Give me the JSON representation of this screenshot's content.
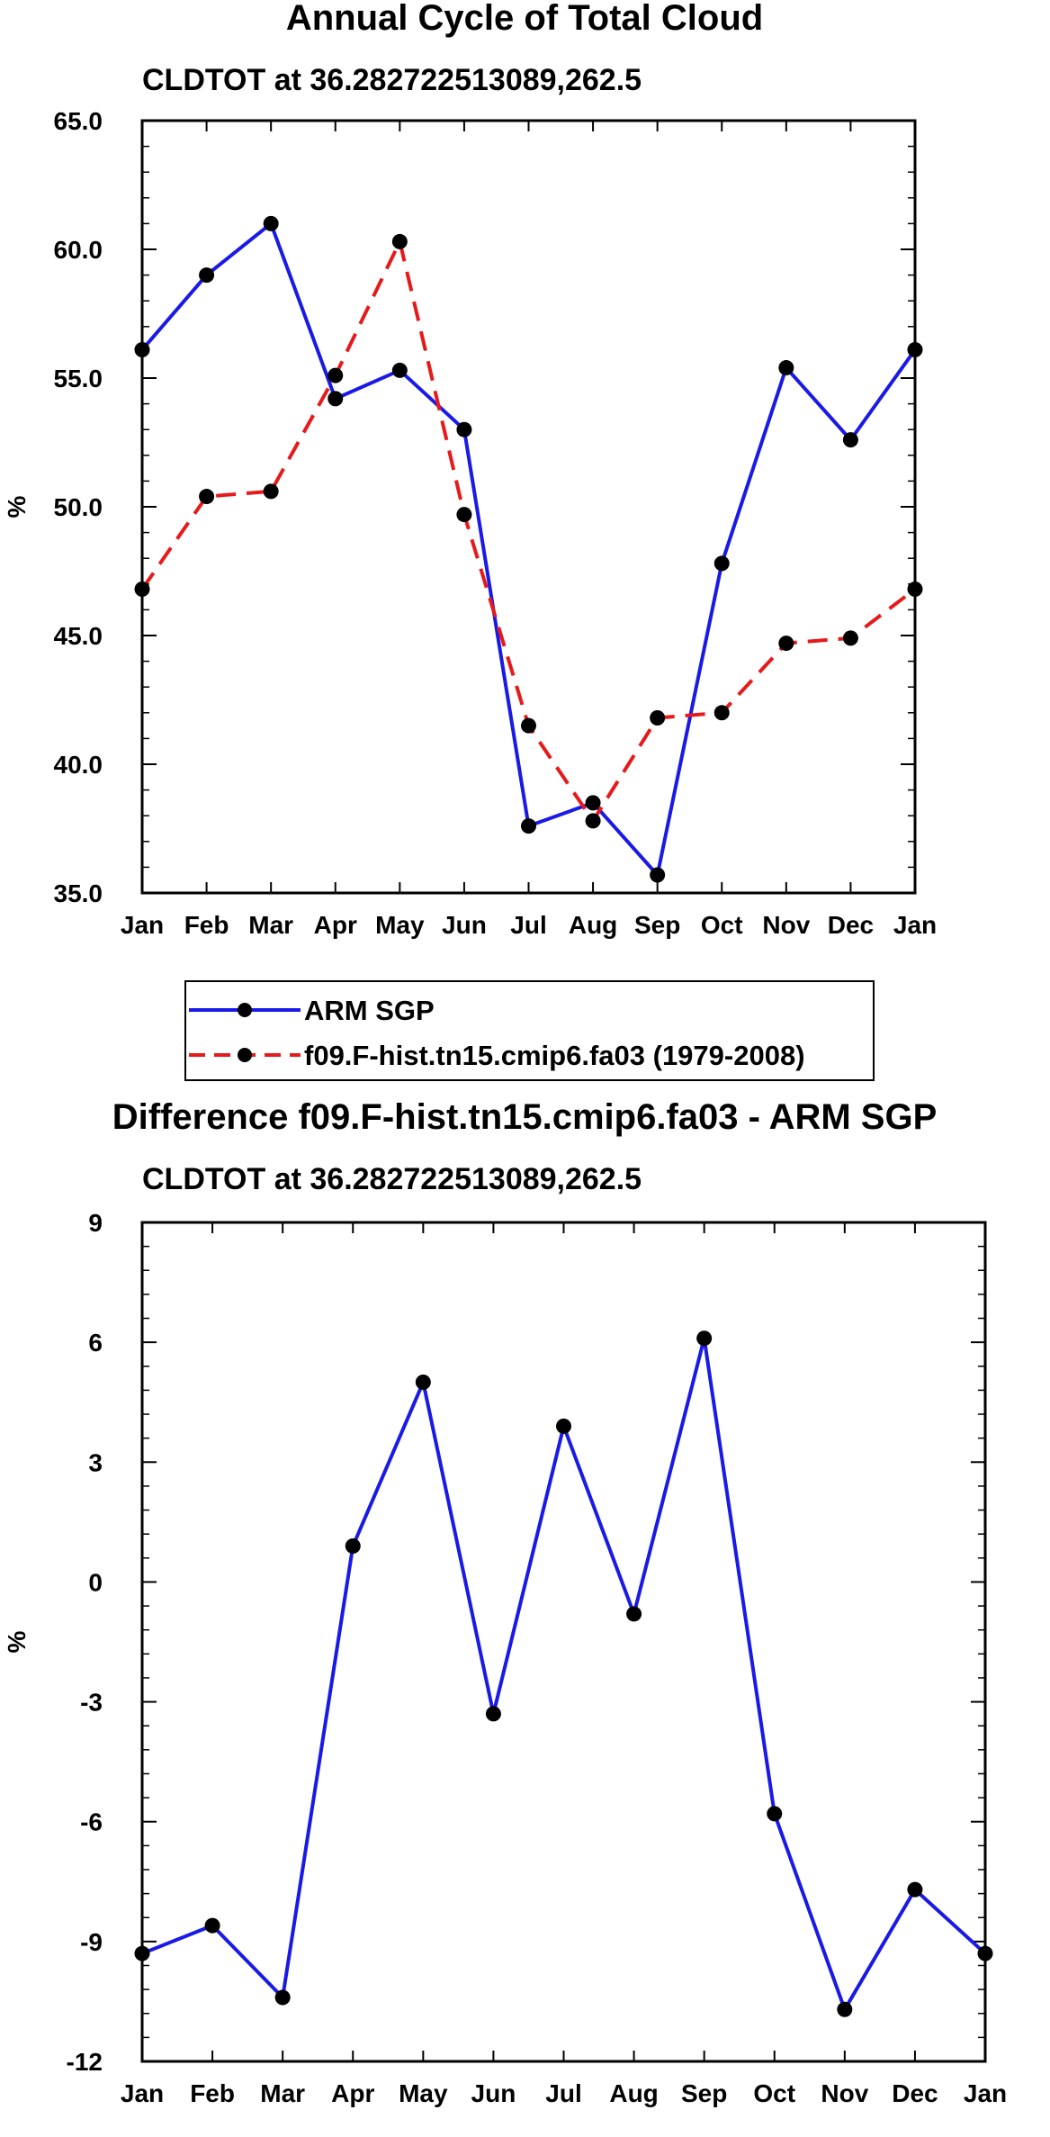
{
  "chart_data": [
    {
      "type": "line",
      "title": "Annual Cycle of Total Cloud",
      "subtitle": "CLDTOT at 36.282722513089,262.5",
      "ylabel": "%",
      "xlabel": "",
      "categories": [
        "Jan",
        "Feb",
        "Mar",
        "Apr",
        "May",
        "Jun",
        "Jul",
        "Aug",
        "Sep",
        "Oct",
        "Nov",
        "Dec",
        "Jan"
      ],
      "ylim": [
        35.0,
        65.0
      ],
      "yticks": [
        "35.0",
        "40.0",
        "45.0",
        "50.0",
        "55.0",
        "60.0",
        "65.0"
      ],
      "ytick_values": [
        35,
        40,
        45,
        50,
        55,
        60,
        65
      ],
      "series": [
        {
          "name": "ARM SGP",
          "color": "#1a1ae6",
          "dashed": false,
          "values": [
            56.1,
            59.0,
            61.0,
            54.2,
            55.3,
            53.0,
            37.6,
            38.5,
            35.7,
            47.8,
            55.4,
            52.6,
            56.1
          ]
        },
        {
          "name": "f09.F-hist.tn15.cmip6.fa03 (1979-2008)",
          "color": "#e61a1a",
          "dashed": true,
          "values": [
            46.8,
            50.4,
            50.6,
            55.1,
            60.3,
            49.7,
            41.5,
            37.8,
            41.8,
            42.0,
            44.7,
            44.9,
            46.8
          ]
        }
      ],
      "legend": [
        "ARM SGP",
        "f09.F-hist.tn15.cmip6.fa03 (1979-2008)"
      ],
      "legend_position": "bottom"
    },
    {
      "type": "line",
      "title": "Difference f09.F-hist.tn15.cmip6.fa03 - ARM SGP",
      "subtitle": "CLDTOT at 36.282722513089,262.5",
      "ylabel": "%",
      "xlabel": "",
      "categories": [
        "Jan",
        "Feb",
        "Mar",
        "Apr",
        "May",
        "Jun",
        "Jul",
        "Aug",
        "Sep",
        "Oct",
        "Nov",
        "Dec",
        "Jan"
      ],
      "ylim": [
        -12,
        9
      ],
      "yticks": [
        "-12",
        "-9",
        "-6",
        "-3",
        "0",
        "3",
        "6",
        "9"
      ],
      "ytick_values": [
        -12,
        -9,
        -6,
        -3,
        0,
        3,
        6,
        9
      ],
      "series": [
        {
          "name": "Difference",
          "color": "#1a1ae6",
          "dashed": false,
          "values": [
            -9.3,
            -8.6,
            -10.4,
            0.9,
            5.0,
            -3.3,
            3.9,
            -0.8,
            6.1,
            -5.8,
            -10.7,
            -7.7,
            -9.3
          ]
        }
      ]
    }
  ]
}
